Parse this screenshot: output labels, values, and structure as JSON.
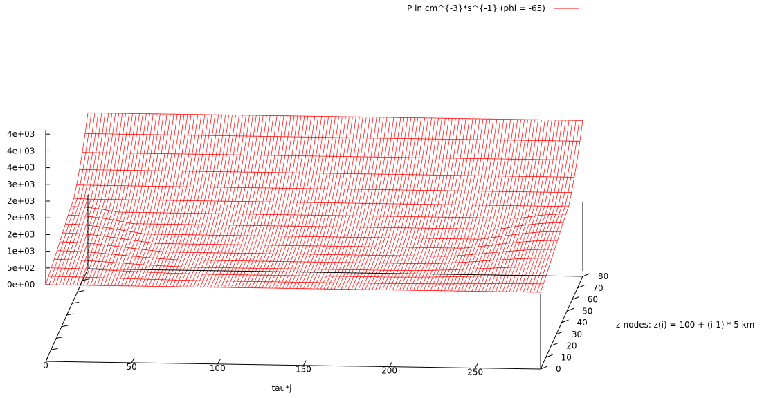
{
  "chart_data": {
    "type": "surface",
    "legend": {
      "label": "P in cm^{-3}*s^{-1} (phi = -65)",
      "placement": "top-right"
    },
    "colors": {
      "surface": "#ff0000",
      "axes": "#000000"
    },
    "xlabel": "tau*j",
    "ylabel": "z-nodes: z(i) = 100 + (i-1) * 5 km",
    "zlabel": "",
    "x_ticks": [
      "0",
      "50",
      "100",
      "150",
      "200",
      "250"
    ],
    "y_ticks": [
      "0",
      "10",
      "20",
      "30",
      "40",
      "50",
      "60",
      "70",
      "80"
    ],
    "z_ticks": [
      "0e+00",
      "5e+02",
      "1e+03",
      "2e+03",
      "2e+03",
      "2e+03",
      "3e+03",
      "4e+03",
      "4e+03",
      "4e+03"
    ],
    "xlim": [
      0,
      288
    ],
    "ylim": [
      0,
      80
    ],
    "zlim": [
      0,
      4500
    ],
    "surface_description": {
      "x_samples": 145,
      "y_samples": 16,
      "peak_value": 4400,
      "high_altitude_plateau": 2300,
      "peak_x": [
        0,
        288
      ]
    }
  }
}
